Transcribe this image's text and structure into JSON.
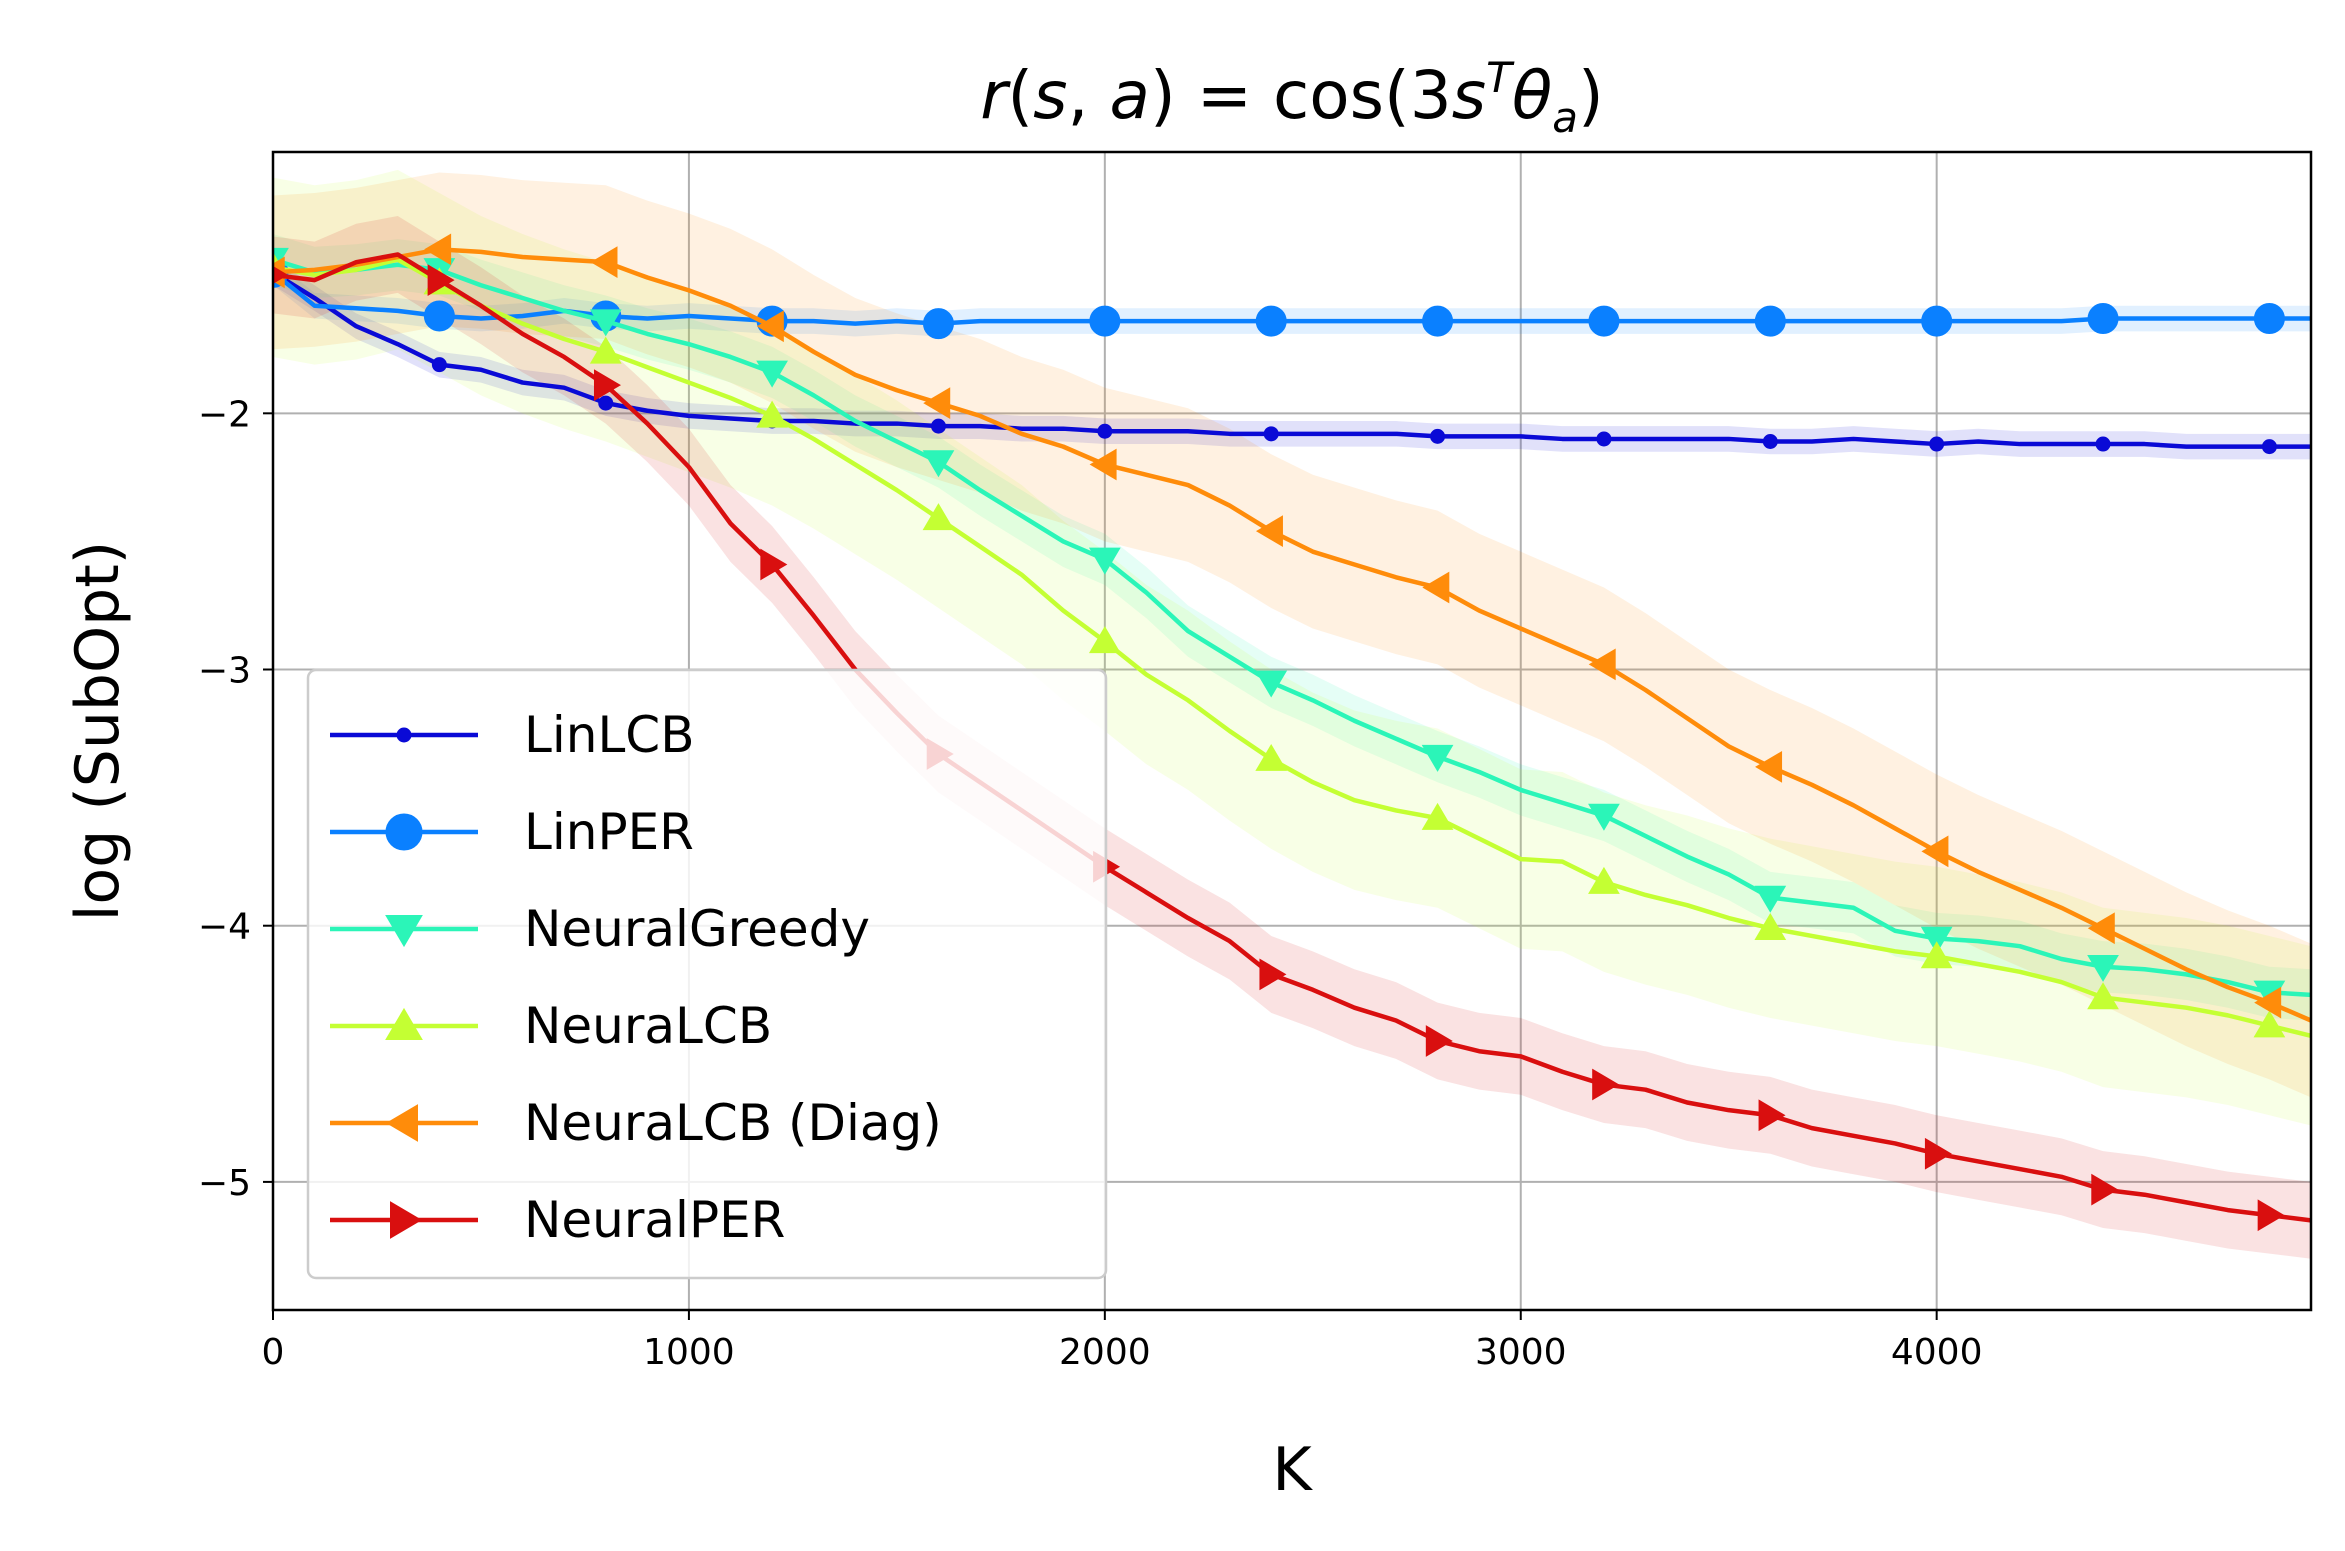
{
  "chart_data": {
    "type": "line",
    "title": "r(s,a) = cos(3sᵀθₐ)",
    "xlabel": "K",
    "ylabel": "log (SubOpt)",
    "xlim": [
      0,
      4900
    ],
    "ylim": [
      -5.5,
      -0.98
    ],
    "xticks": [
      0,
      1000,
      2000,
      3000,
      4000
    ],
    "xtick_labels": [
      "0",
      "1000",
      "2000",
      "3000",
      "4000"
    ],
    "yticks": [
      -2,
      -3,
      -4,
      -5
    ],
    "ytick_labels": [
      "−2",
      "−3",
      "−4",
      "−5"
    ],
    "grid": true,
    "legend_position": "lower-left",
    "x": [
      0,
      100,
      200,
      300,
      400,
      500,
      600,
      700,
      800,
      900,
      1000,
      1100,
      1200,
      1300,
      1400,
      1500,
      1600,
      1700,
      1800,
      1900,
      2000,
      2100,
      2200,
      2300,
      2400,
      2500,
      2600,
      2700,
      2800,
      2900,
      3000,
      3100,
      3200,
      3300,
      3400,
      3500,
      3600,
      3700,
      3800,
      3900,
      4000,
      4100,
      4200,
      4300,
      4400,
      4500,
      4600,
      4700,
      4800,
      4900
    ],
    "series": [
      {
        "name": "LinLCB",
        "color": "#0a0ad6",
        "marker": "dot",
        "band": 0.05,
        "values": [
          -1.45,
          -1.55,
          -1.66,
          -1.73,
          -1.81,
          -1.83,
          -1.88,
          -1.9,
          -1.96,
          -1.99,
          -2.01,
          -2.02,
          -2.03,
          -2.03,
          -2.04,
          -2.04,
          -2.05,
          -2.05,
          -2.06,
          -2.06,
          -2.07,
          -2.07,
          -2.07,
          -2.08,
          -2.08,
          -2.08,
          -2.08,
          -2.08,
          -2.09,
          -2.09,
          -2.09,
          -2.1,
          -2.1,
          -2.1,
          -2.1,
          -2.1,
          -2.11,
          -2.11,
          -2.1,
          -2.11,
          -2.12,
          -2.11,
          -2.12,
          -2.12,
          -2.12,
          -2.12,
          -2.13,
          -2.13,
          -2.13,
          -2.13
        ]
      },
      {
        "name": "LinPER",
        "color": "#0a80ff",
        "marker": "circle",
        "band": 0.05,
        "values": [
          -1.45,
          -1.58,
          -1.59,
          -1.6,
          -1.62,
          -1.63,
          -1.62,
          -1.6,
          -1.62,
          -1.63,
          -1.62,
          -1.63,
          -1.64,
          -1.64,
          -1.65,
          -1.64,
          -1.65,
          -1.64,
          -1.64,
          -1.64,
          -1.64,
          -1.64,
          -1.64,
          -1.64,
          -1.64,
          -1.64,
          -1.64,
          -1.64,
          -1.64,
          -1.64,
          -1.64,
          -1.64,
          -1.64,
          -1.64,
          -1.64,
          -1.64,
          -1.64,
          -1.64,
          -1.64,
          -1.64,
          -1.64,
          -1.64,
          -1.64,
          -1.64,
          -1.63,
          -1.63,
          -1.63,
          -1.63,
          -1.63,
          -1.63
        ]
      },
      {
        "name": "NeuralGreedy",
        "color": "#2bf5b8",
        "marker": "triangle-down",
        "band": 0.1,
        "values": [
          -1.4,
          -1.45,
          -1.44,
          -1.42,
          -1.44,
          -1.5,
          -1.55,
          -1.6,
          -1.64,
          -1.69,
          -1.73,
          -1.78,
          -1.84,
          -1.93,
          -2.03,
          -2.11,
          -2.19,
          -2.3,
          -2.4,
          -2.5,
          -2.57,
          -2.7,
          -2.85,
          -2.95,
          -3.05,
          -3.12,
          -3.2,
          -3.27,
          -3.34,
          -3.4,
          -3.47,
          -3.52,
          -3.57,
          -3.65,
          -3.73,
          -3.8,
          -3.89,
          -3.91,
          -3.93,
          -4.02,
          -4.05,
          -4.06,
          -4.08,
          -4.13,
          -4.16,
          -4.17,
          -4.19,
          -4.22,
          -4.26,
          -4.27
        ]
      },
      {
        "name": "NeuraLCB",
        "color": "#c4ff33",
        "marker": "triangle-up",
        "band": 0.35,
        "values": [
          -1.43,
          -1.46,
          -1.44,
          -1.4,
          -1.49,
          -1.58,
          -1.65,
          -1.71,
          -1.76,
          -1.82,
          -1.88,
          -1.94,
          -2.01,
          -2.1,
          -2.2,
          -2.3,
          -2.41,
          -2.52,
          -2.63,
          -2.77,
          -2.89,
          -3.02,
          -3.12,
          -3.24,
          -3.35,
          -3.44,
          -3.51,
          -3.55,
          -3.58,
          -3.66,
          -3.74,
          -3.75,
          -3.83,
          -3.88,
          -3.92,
          -3.97,
          -4.01,
          -4.04,
          -4.07,
          -4.1,
          -4.12,
          -4.15,
          -4.18,
          -4.22,
          -4.28,
          -4.3,
          -4.32,
          -4.35,
          -4.39,
          -4.43
        ]
      },
      {
        "name": "NeuraLCB (Diag)",
        "color": "#ff8c0a",
        "marker": "triangle-left",
        "band": 0.3,
        "values": [
          -1.45,
          -1.44,
          -1.42,
          -1.39,
          -1.36,
          -1.37,
          -1.39,
          -1.4,
          -1.41,
          -1.47,
          -1.52,
          -1.58,
          -1.66,
          -1.76,
          -1.85,
          -1.91,
          -1.96,
          -2.01,
          -2.08,
          -2.13,
          -2.2,
          -2.24,
          -2.28,
          -2.36,
          -2.46,
          -2.54,
          -2.59,
          -2.64,
          -2.68,
          -2.77,
          -2.84,
          -2.91,
          -2.98,
          -3.08,
          -3.19,
          -3.3,
          -3.38,
          -3.45,
          -3.53,
          -3.62,
          -3.71,
          -3.79,
          -3.86,
          -3.93,
          -4.01,
          -4.09,
          -4.17,
          -4.24,
          -4.3,
          -4.37
        ]
      },
      {
        "name": "NeuralPER",
        "color": "#d90f0f",
        "marker": "triangle-right",
        "band": 0.15,
        "values": [
          -1.46,
          -1.48,
          -1.41,
          -1.38,
          -1.48,
          -1.58,
          -1.69,
          -1.78,
          -1.89,
          -2.04,
          -2.21,
          -2.43,
          -2.59,
          -2.79,
          -3.0,
          -3.17,
          -3.33,
          -3.44,
          -3.55,
          -3.66,
          -3.77,
          -3.87,
          -3.97,
          -4.06,
          -4.19,
          -4.25,
          -4.32,
          -4.37,
          -4.45,
          -4.49,
          -4.51,
          -4.57,
          -4.62,
          -4.64,
          -4.69,
          -4.72,
          -4.74,
          -4.79,
          -4.82,
          -4.85,
          -4.89,
          -4.92,
          -4.95,
          -4.98,
          -5.03,
          -5.05,
          -5.08,
          -5.11,
          -5.13,
          -5.15
        ]
      }
    ]
  }
}
